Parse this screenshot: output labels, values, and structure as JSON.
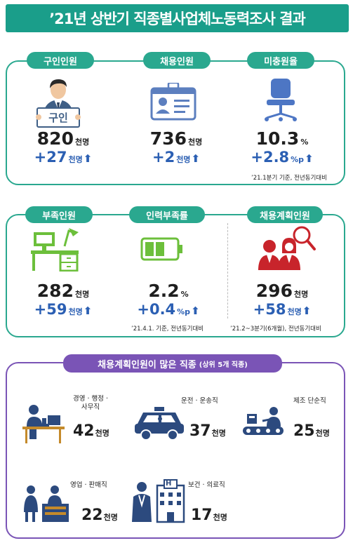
{
  "title": "’21년 상반기 직종별사업체노동력조사 결과",
  "section1": {
    "items": [
      {
        "label": "구인인원",
        "value": "820",
        "unit": "천명",
        "delta": "+27",
        "delta_unit": "천명",
        "badge": "구인"
      },
      {
        "label": "채용인원",
        "value": "736",
        "unit": "천명",
        "delta": "+2",
        "delta_unit": "천명"
      },
      {
        "label": "미충원율",
        "value": "10.3",
        "unit": "%",
        "delta": "+2.8",
        "delta_unit": "%p"
      }
    ],
    "note": "’21.1분기 기준, 전년동기대비"
  },
  "section2": {
    "items": [
      {
        "label": "부족인원",
        "value": "282",
        "unit": "천명",
        "delta": "+59",
        "delta_unit": "천명"
      },
      {
        "label": "인력부족률",
        "value": "2.2",
        "unit": "%",
        "delta": "+0.4",
        "delta_unit": "%p"
      },
      {
        "label": "채용계획인원",
        "value": "296",
        "unit": "천명",
        "delta": "+58",
        "delta_unit": "천명"
      }
    ],
    "note_left": "’21.4.1. 기준, 전년동기대비",
    "note_right": "’21.2~3분기(6개월), 전년동기대비"
  },
  "section3": {
    "title": "채용계획인원이 많은 직종",
    "subtitle": "(상위 5개 직종)",
    "jobs": [
      {
        "label1": "경영 · 행정 ·",
        "label2": "사무직",
        "value": "42",
        "unit": "천명"
      },
      {
        "label1": "운전 · 운송직",
        "label2": "",
        "value": "37",
        "unit": "천명"
      },
      {
        "label1": "제조 단순직",
        "label2": "",
        "value": "25",
        "unit": "천명"
      },
      {
        "label1": "영업 · 판매직",
        "label2": "",
        "value": "22",
        "unit": "천명"
      },
      {
        "label1": "보건 · 의료직",
        "label2": "",
        "value": "17",
        "unit": "천명"
      }
    ]
  },
  "arrow_glyph": "⬆",
  "colors": {
    "teal": "#1a9e8a",
    "purple": "#7a54b6",
    "blue": "#2b5fb3",
    "green": "#6cbf3b",
    "red": "#c8242b"
  }
}
